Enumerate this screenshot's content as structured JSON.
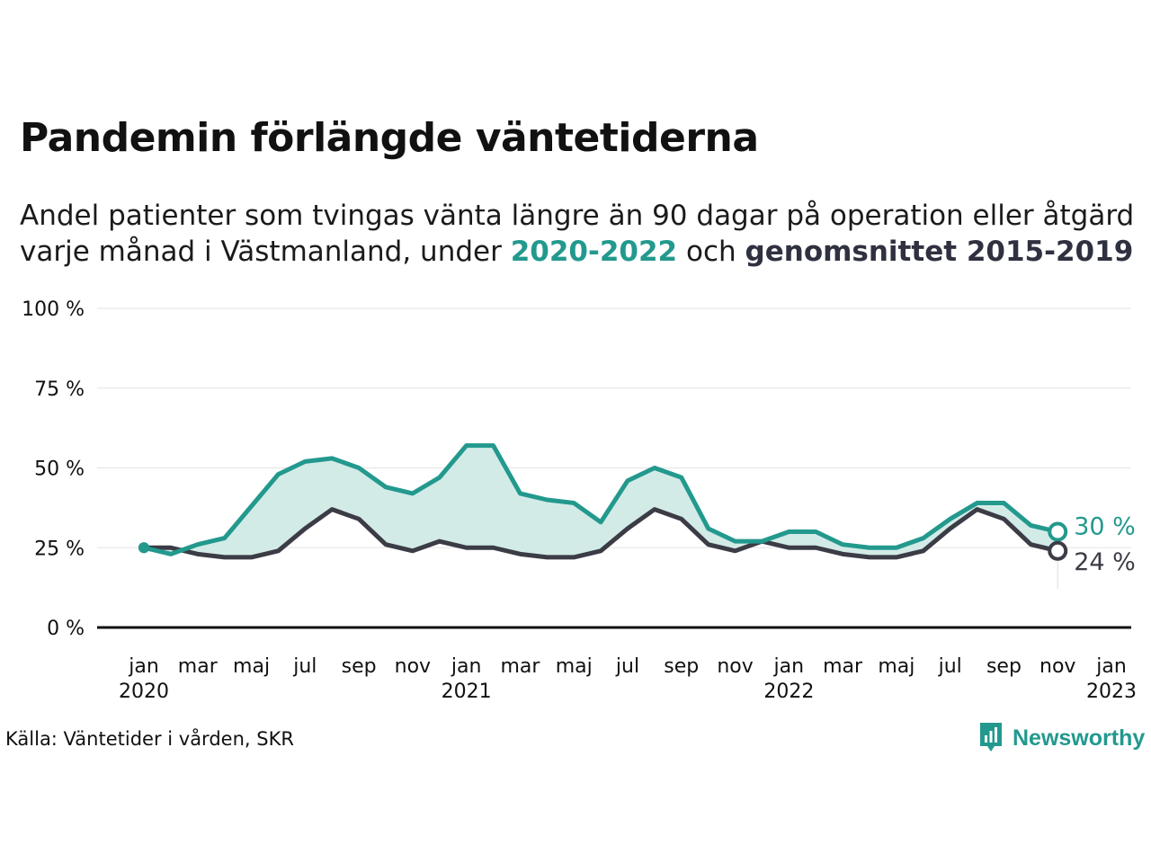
{
  "title": "Pandemin förlängde väntetiderna",
  "subtitle": {
    "line1": "Andel patienter som tvingas vänta längre än 90 dagar på operation eller åtgärd",
    "line2_prefix": "varje månad i Västmanland, under",
    "highlight_current": "2020-2022",
    "connector": "och",
    "highlight_average": "genomsnittet 2015-2019"
  },
  "source": "Källa: Väntetider i vården, SKR",
  "brand": {
    "name": "Newsworthy",
    "logo_icon": "newsworthy-logo-icon"
  },
  "colors": {
    "current": "#23998e",
    "average": "#3b3c45",
    "fill": "#d3ebe7",
    "grid": "#e3e3e3",
    "axis": "#111111"
  },
  "chart_data": {
    "type": "line",
    "ylim": [
      0,
      100
    ],
    "yticks": [
      {
        "value": 0,
        "label": "0 %"
      },
      {
        "value": 25,
        "label": "25 %"
      },
      {
        "value": 50,
        "label": "50 %"
      },
      {
        "value": 75,
        "label": "75 %"
      },
      {
        "value": 100,
        "label": "100 %"
      }
    ],
    "xlim": [
      0,
      36
    ],
    "xticks": [
      {
        "pos": 0,
        "label": "jan",
        "year": "2020"
      },
      {
        "pos": 2,
        "label": "mar"
      },
      {
        "pos": 4,
        "label": "maj"
      },
      {
        "pos": 6,
        "label": "jul"
      },
      {
        "pos": 8,
        "label": "sep"
      },
      {
        "pos": 10,
        "label": "nov"
      },
      {
        "pos": 12,
        "label": "jan",
        "year": "2021"
      },
      {
        "pos": 14,
        "label": "mar"
      },
      {
        "pos": 16,
        "label": "maj"
      },
      {
        "pos": 18,
        "label": "jul"
      },
      {
        "pos": 20,
        "label": "sep"
      },
      {
        "pos": 22,
        "label": "nov"
      },
      {
        "pos": 24,
        "label": "jan",
        "year": "2022"
      },
      {
        "pos": 26,
        "label": "mar"
      },
      {
        "pos": 28,
        "label": "maj"
      },
      {
        "pos": 30,
        "label": "jul"
      },
      {
        "pos": 32,
        "label": "sep"
      },
      {
        "pos": 34,
        "label": "nov"
      },
      {
        "pos": 36,
        "label": "jan",
        "year": "2023"
      }
    ],
    "series": [
      {
        "key": "current",
        "name": "2020-2022",
        "end_label": "30 %",
        "values": [
          25,
          23,
          26,
          28,
          38,
          48,
          52,
          53,
          50,
          44,
          42,
          47,
          57,
          57,
          42,
          40,
          39,
          33,
          46,
          50,
          47,
          31,
          27,
          27,
          30,
          30,
          26,
          25,
          25,
          28,
          34,
          39,
          39,
          32,
          30
        ]
      },
      {
        "key": "average",
        "name": "genomsnittet 2015-2019",
        "end_label": "24 %",
        "values": [
          25,
          25,
          23,
          22,
          22,
          24,
          31,
          37,
          34,
          26,
          24,
          27,
          25,
          25,
          23,
          22,
          22,
          24,
          31,
          37,
          34,
          26,
          24,
          27,
          25,
          25,
          23,
          22,
          22,
          24,
          31,
          37,
          34,
          26,
          24
        ]
      }
    ]
  }
}
